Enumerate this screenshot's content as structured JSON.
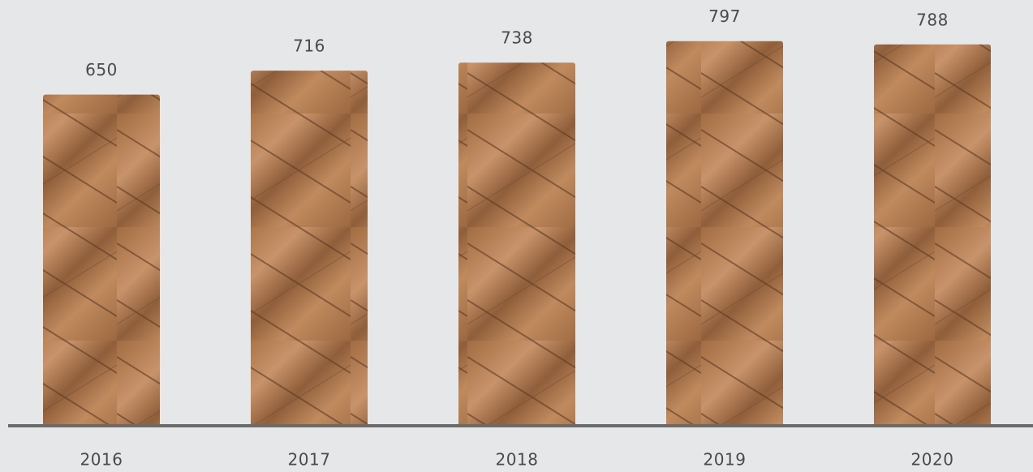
{
  "chart_data": {
    "type": "bar",
    "categories": [
      "2016",
      "2017",
      "2018",
      "2019",
      "2020"
    ],
    "values": [
      650,
      716,
      738,
      797,
      788
    ],
    "color": "#b07a4f",
    "ylim": [
      -260,
      890
    ]
  }
}
